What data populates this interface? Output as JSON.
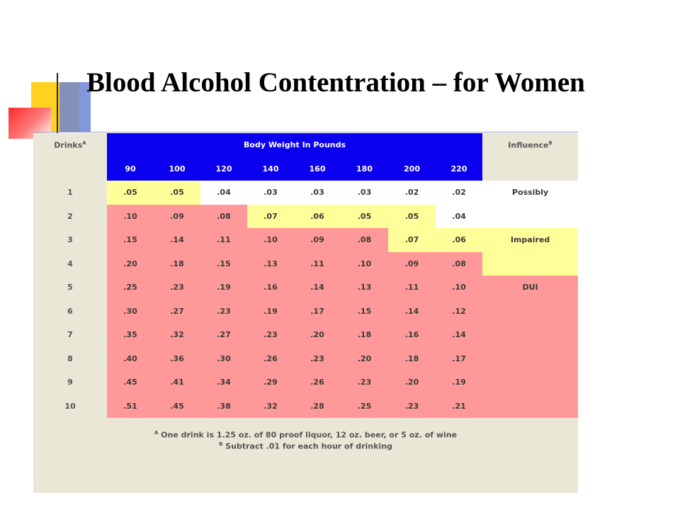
{
  "slide": {
    "title": "Blood Alcohol Contentration – for Women"
  },
  "table": {
    "drinks_header": "Drinks",
    "drinks_header_sup": "A",
    "weight_header": "Body Weight In Pounds",
    "influence_header": "Influence",
    "influence_header_sup": "B",
    "weights": [
      "90",
      "100",
      "120",
      "140",
      "160",
      "180",
      "200",
      "220"
    ],
    "rows": [
      {
        "drinks": "1",
        "values": [
          ".05",
          ".05",
          ".04",
          ".03",
          ".03",
          ".03",
          ".02",
          ".02"
        ],
        "influence": "Possibly"
      },
      {
        "drinks": "2",
        "values": [
          ".10",
          ".09",
          ".08",
          ".07",
          ".06",
          ".05",
          ".05",
          ".04"
        ],
        "influence": ""
      },
      {
        "drinks": "3",
        "values": [
          ".15",
          ".14",
          ".11",
          ".10",
          ".09",
          ".08",
          ".07",
          ".06"
        ],
        "influence": "Impaired"
      },
      {
        "drinks": "4",
        "values": [
          ".20",
          ".18",
          ".15",
          ".13",
          ".11",
          ".10",
          ".09",
          ".08"
        ],
        "influence": ""
      },
      {
        "drinks": "5",
        "values": [
          ".25",
          ".23",
          ".19",
          ".16",
          ".14",
          ".13",
          ".11",
          ".10"
        ],
        "influence": "DUI"
      },
      {
        "drinks": "6",
        "values": [
          ".30",
          ".27",
          ".23",
          ".19",
          ".17",
          ".15",
          ".14",
          ".12"
        ],
        "influence": ""
      },
      {
        "drinks": "7",
        "values": [
          ".35",
          ".32",
          ".27",
          ".23",
          ".20",
          ".18",
          ".16",
          ".14"
        ],
        "influence": ""
      },
      {
        "drinks": "8",
        "values": [
          ".40",
          ".36",
          ".30",
          ".26",
          ".23",
          ".20",
          ".18",
          ".17"
        ],
        "influence": ""
      },
      {
        "drinks": "9",
        "values": [
          ".45",
          ".41",
          ".34",
          ".29",
          ".26",
          ".23",
          ".20",
          ".19"
        ],
        "influence": ""
      },
      {
        "drinks": "10",
        "values": [
          ".51",
          ".45",
          ".38",
          ".32",
          ".28",
          ".25",
          ".23",
          ".21"
        ],
        "influence": ""
      }
    ],
    "colors": {
      "header_blue": "#0b00ee",
      "possibly_yellow": "#ffff99",
      "impaired_pink": "#ff9999",
      "panel_beige": "#ebe7d7"
    }
  },
  "footnotes": {
    "a_sup": "A",
    "a_text": "One drink is 1.25 oz. of 80 proof liquor, 12 oz. beer, or 5 oz. of wine",
    "b_sup": "B",
    "b_text": "Subtract .01 for each hour of drinking"
  }
}
